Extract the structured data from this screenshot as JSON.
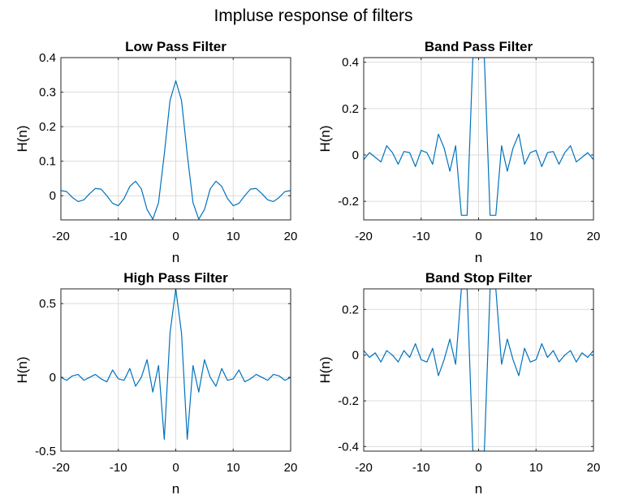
{
  "figure_title": "Impluse response of filters",
  "colors": {
    "line": "#0072BD",
    "grid": "#dcdcdc",
    "axes": "#262626"
  },
  "chart_data": [
    {
      "id": "lowpass",
      "type": "line",
      "title": "Low Pass Filter",
      "xlabel": "n",
      "ylabel": "H(n)",
      "xlim": [
        -20,
        20
      ],
      "ylim": [
        -0.07,
        0.4
      ],
      "xticks": [
        -20,
        -10,
        0,
        10,
        20
      ],
      "yticks": [
        0,
        0.1,
        0.2,
        0.3,
        0.4
      ],
      "ytick_labels": [
        "0",
        "0.1",
        "0.2",
        "0.3",
        "0.4"
      ],
      "grid": true,
      "x": [
        -20,
        -19,
        -18,
        -17,
        -16,
        -15,
        -14,
        -13,
        -12,
        -11,
        -10,
        -9,
        -8,
        -7,
        -6,
        -5,
        -4,
        -3,
        -2,
        -1,
        0,
        1,
        2,
        3,
        4,
        5,
        6,
        7,
        8,
        9,
        10,
        11,
        12,
        13,
        14,
        15,
        16,
        17,
        18,
        19,
        20
      ],
      "y": [
        0.015,
        0.012,
        -0.005,
        -0.017,
        -0.012,
        0.006,
        0.021,
        0.019,
        0.0,
        -0.022,
        -0.029,
        -0.008,
        0.027,
        0.042,
        0.02,
        -0.04,
        -0.068,
        -0.02,
        0.12,
        0.276,
        0.333,
        0.276,
        0.12,
        -0.02,
        -0.068,
        -0.04,
        0.02,
        0.042,
        0.027,
        -0.008,
        -0.029,
        -0.022,
        0.0,
        0.019,
        0.021,
        0.006,
        -0.012,
        -0.017,
        -0.005,
        0.012,
        0.015
      ]
    },
    {
      "id": "bandpass",
      "type": "line",
      "title": "Band Pass Filter",
      "xlabel": "n",
      "ylabel": "H(n)",
      "xlim": [
        -20,
        20
      ],
      "ylim": [
        -0.28,
        0.42
      ],
      "xticks": [
        -20,
        -10,
        0,
        10,
        20
      ],
      "yticks": [
        -0.2,
        0,
        0.2,
        0.4
      ],
      "ytick_labels": [
        "-0.2",
        "0",
        "0.2",
        "0.4"
      ],
      "grid": true,
      "x": [
        -20,
        -19,
        -18,
        -17,
        -16,
        -15,
        -14,
        -13,
        -12,
        -11,
        -10,
        -9,
        -8,
        -7,
        -6,
        -5,
        -4,
        -3,
        -2,
        -1,
        0,
        1,
        2,
        3,
        4,
        5,
        6,
        7,
        8,
        9,
        10,
        11,
        12,
        13,
        14,
        15,
        16,
        17,
        18,
        19,
        20
      ],
      "y": [
        -0.02,
        0.01,
        -0.01,
        -0.03,
        0.04,
        0.01,
        -0.04,
        0.015,
        0.01,
        -0.05,
        0.02,
        0.01,
        -0.04,
        0.09,
        0.03,
        -0.07,
        0.04,
        -0.26,
        -0.26,
        0.42,
        0.42,
        0.42,
        -0.26,
        -0.26,
        0.04,
        -0.07,
        0.03,
        0.09,
        -0.04,
        0.01,
        0.02,
        -0.05,
        0.01,
        0.015,
        -0.04,
        0.01,
        0.04,
        -0.03,
        -0.01,
        0.01,
        -0.02
      ]
    },
    {
      "id": "highpass",
      "type": "line",
      "title": "High Pass Filter",
      "xlabel": "n",
      "ylabel": "H(n)",
      "xlim": [
        -20,
        20
      ],
      "ylim": [
        -0.5,
        0.6
      ],
      "xticks": [
        -20,
        -10,
        0,
        10,
        20
      ],
      "yticks": [
        -0.5,
        0,
        0.5
      ],
      "ytick_labels": [
        "-0.5",
        "0",
        "0.5"
      ],
      "grid": true,
      "x": [
        -20,
        -19,
        -18,
        -17,
        -16,
        -15,
        -14,
        -13,
        -12,
        -11,
        -10,
        -9,
        -8,
        -7,
        -6,
        -5,
        -4,
        -3,
        -2,
        -1,
        0,
        1,
        2,
        3,
        4,
        5,
        6,
        7,
        8,
        9,
        10,
        11,
        12,
        13,
        14,
        15,
        16,
        17,
        18,
        19,
        20
      ],
      "y": [
        0.0,
        -0.02,
        0.01,
        0.02,
        -0.02,
        0.0,
        0.02,
        -0.01,
        -0.03,
        0.05,
        -0.01,
        -0.02,
        0.06,
        -0.06,
        0.0,
        0.12,
        -0.1,
        0.08,
        -0.42,
        0.3,
        0.6,
        0.3,
        -0.42,
        0.08,
        -0.1,
        0.12,
        0.0,
        -0.06,
        0.06,
        -0.02,
        -0.01,
        0.05,
        -0.03,
        -0.01,
        0.02,
        0.0,
        -0.02,
        0.02,
        0.01,
        -0.02,
        0.0
      ]
    },
    {
      "id": "bandstop",
      "type": "line",
      "title": "Band Stop Filter",
      "xlabel": "n",
      "ylabel": "H(n)",
      "xlim": [
        -20,
        20
      ],
      "ylim": [
        -0.42,
        0.29
      ],
      "xticks": [
        -20,
        -10,
        0,
        10,
        20
      ],
      "yticks": [
        -0.4,
        -0.2,
        0,
        0.2
      ],
      "ytick_labels": [
        "-0.4",
        "-0.2",
        "0",
        "0.2"
      ],
      "grid": true,
      "x": [
        -20,
        -19,
        -18,
        -17,
        -16,
        -15,
        -14,
        -13,
        -12,
        -11,
        -10,
        -9,
        -8,
        -7,
        -6,
        -5,
        -4,
        -3,
        -2,
        -1,
        0,
        1,
        2,
        3,
        4,
        5,
        6,
        7,
        8,
        9,
        10,
        11,
        12,
        13,
        14,
        15,
        16,
        17,
        18,
        19,
        20
      ],
      "y": [
        0.02,
        -0.01,
        0.01,
        -0.03,
        0.02,
        0.0,
        -0.03,
        0.02,
        -0.01,
        0.05,
        -0.02,
        -0.03,
        0.03,
        -0.09,
        -0.02,
        0.07,
        -0.04,
        0.29,
        0.29,
        -0.42,
        -0.42,
        -0.42,
        0.29,
        0.29,
        -0.04,
        0.07,
        -0.02,
        -0.09,
        0.03,
        -0.03,
        -0.02,
        0.05,
        -0.01,
        0.02,
        -0.03,
        0.0,
        0.02,
        -0.03,
        0.01,
        -0.01,
        0.02
      ]
    }
  ]
}
